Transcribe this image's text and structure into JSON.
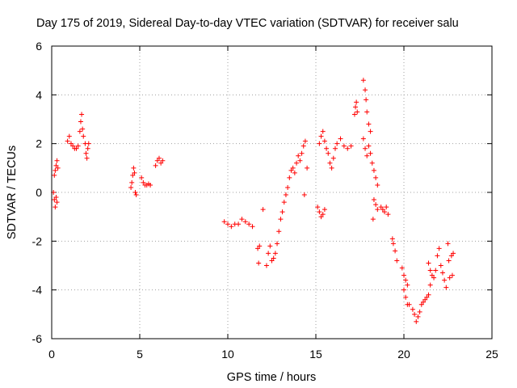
{
  "chart_data": {
    "type": "scatter",
    "title": "Day 175 of 2019, Sidereal Day-to-day VTEC variation (SDTVAR) for receiver salu",
    "xlabel": "GPS time / hours",
    "ylabel": "SDTVAR / TECUs",
    "xlim": [
      0,
      25
    ],
    "ylim": [
      -6,
      6
    ],
    "xticks": [
      0,
      5,
      10,
      15,
      20,
      25
    ],
    "yticks": [
      -6,
      -4,
      -2,
      0,
      2,
      4,
      6
    ],
    "xtick_labels": [
      "0",
      "5",
      "10",
      "15",
      "20",
      "25"
    ],
    "ytick_labels": [
      "-6",
      "-4",
      "-2",
      "0",
      "2",
      "4",
      "6"
    ],
    "grid": true,
    "marker": "+",
    "color": "#ff0000",
    "series": [
      {
        "name": "SDTVAR",
        "points": [
          [
            0.1,
            0.0
          ],
          [
            0.15,
            -0.3
          ],
          [
            0.2,
            -0.6
          ],
          [
            0.25,
            -0.2
          ],
          [
            0.3,
            -0.4
          ],
          [
            0.15,
            0.7
          ],
          [
            0.2,
            0.9
          ],
          [
            0.25,
            1.1
          ],
          [
            0.3,
            1.3
          ],
          [
            0.35,
            1.0
          ],
          [
            0.9,
            2.1
          ],
          [
            1.0,
            2.3
          ],
          [
            1.1,
            2.0
          ],
          [
            1.2,
            1.9
          ],
          [
            1.3,
            1.8
          ],
          [
            1.4,
            1.8
          ],
          [
            1.5,
            1.9
          ],
          [
            1.6,
            2.5
          ],
          [
            1.65,
            2.9
          ],
          [
            1.7,
            3.2
          ],
          [
            1.75,
            2.6
          ],
          [
            1.8,
            2.3
          ],
          [
            1.9,
            2.0
          ],
          [
            1.95,
            1.6
          ],
          [
            2.0,
            1.4
          ],
          [
            2.05,
            1.8
          ],
          [
            2.1,
            2.0
          ],
          [
            4.5,
            0.2
          ],
          [
            4.55,
            0.4
          ],
          [
            4.6,
            0.7
          ],
          [
            4.65,
            1.0
          ],
          [
            4.7,
            0.8
          ],
          [
            4.75,
            0.0
          ],
          [
            4.8,
            -0.1
          ],
          [
            5.1,
            0.6
          ],
          [
            5.2,
            0.4
          ],
          [
            5.3,
            0.3
          ],
          [
            5.4,
            0.3
          ],
          [
            5.5,
            0.35
          ],
          [
            5.6,
            0.3
          ],
          [
            5.9,
            1.1
          ],
          [
            6.0,
            1.3
          ],
          [
            6.1,
            1.4
          ],
          [
            6.2,
            1.2
          ],
          [
            6.3,
            1.3
          ],
          [
            9.8,
            -1.2
          ],
          [
            10.0,
            -1.3
          ],
          [
            10.2,
            -1.4
          ],
          [
            10.4,
            -1.3
          ],
          [
            10.6,
            -1.3
          ],
          [
            10.8,
            -1.1
          ],
          [
            11.0,
            -1.2
          ],
          [
            11.2,
            -1.3
          ],
          [
            11.4,
            -1.4
          ],
          [
            11.7,
            -2.3
          ],
          [
            11.8,
            -2.2
          ],
          [
            11.75,
            -2.9
          ],
          [
            12.0,
            -0.7
          ],
          [
            12.2,
            -3.0
          ],
          [
            12.3,
            -2.5
          ],
          [
            12.4,
            -2.2
          ],
          [
            12.5,
            -2.8
          ],
          [
            12.6,
            -2.7
          ],
          [
            12.7,
            -2.5
          ],
          [
            12.8,
            -2.1
          ],
          [
            12.9,
            -1.6
          ],
          [
            13.0,
            -1.1
          ],
          [
            13.1,
            -0.8
          ],
          [
            13.2,
            -0.4
          ],
          [
            13.3,
            -0.1
          ],
          [
            13.4,
            0.2
          ],
          [
            13.5,
            0.6
          ],
          [
            13.6,
            0.9
          ],
          [
            13.7,
            1.0
          ],
          [
            13.8,
            0.8
          ],
          [
            13.9,
            1.2
          ],
          [
            14.0,
            1.5
          ],
          [
            14.1,
            1.3
          ],
          [
            14.2,
            1.6
          ],
          [
            14.3,
            1.9
          ],
          [
            14.4,
            2.1
          ],
          [
            14.5,
            1.0
          ],
          [
            14.35,
            -0.1
          ],
          [
            15.1,
            -0.6
          ],
          [
            15.2,
            -0.8
          ],
          [
            15.3,
            -1.0
          ],
          [
            15.4,
            -0.9
          ],
          [
            15.5,
            -0.7
          ],
          [
            15.2,
            2.0
          ],
          [
            15.3,
            2.3
          ],
          [
            15.4,
            2.5
          ],
          [
            15.5,
            2.1
          ],
          [
            15.6,
            1.8
          ],
          [
            15.7,
            1.6
          ],
          [
            15.8,
            1.2
          ],
          [
            15.9,
            1.0
          ],
          [
            16.0,
            1.4
          ],
          [
            16.1,
            1.8
          ],
          [
            16.2,
            2.0
          ],
          [
            16.4,
            2.2
          ],
          [
            16.6,
            1.9
          ],
          [
            16.8,
            1.8
          ],
          [
            17.0,
            1.9
          ],
          [
            17.2,
            3.2
          ],
          [
            17.25,
            3.5
          ],
          [
            17.3,
            3.7
          ],
          [
            17.35,
            3.3
          ],
          [
            17.7,
            4.6
          ],
          [
            17.8,
            4.2
          ],
          [
            17.85,
            3.8
          ],
          [
            17.9,
            3.3
          ],
          [
            18.0,
            2.8
          ],
          [
            18.1,
            2.5
          ],
          [
            17.7,
            2.2
          ],
          [
            17.8,
            1.8
          ],
          [
            17.9,
            1.5
          ],
          [
            18.0,
            1.9
          ],
          [
            18.1,
            1.6
          ],
          [
            18.2,
            1.2
          ],
          [
            18.3,
            0.9
          ],
          [
            18.4,
            0.6
          ],
          [
            18.5,
            0.3
          ],
          [
            18.3,
            -0.3
          ],
          [
            18.4,
            -0.5
          ],
          [
            18.5,
            -0.7
          ],
          [
            18.25,
            -1.1
          ],
          [
            18.7,
            -0.6
          ],
          [
            18.8,
            -0.7
          ],
          [
            18.9,
            -0.8
          ],
          [
            19.0,
            -0.6
          ],
          [
            19.1,
            -0.9
          ],
          [
            19.35,
            -1.9
          ],
          [
            19.4,
            -2.1
          ],
          [
            19.5,
            -2.4
          ],
          [
            19.6,
            -2.8
          ],
          [
            19.9,
            -3.1
          ],
          [
            20.0,
            -3.4
          ],
          [
            20.1,
            -3.6
          ],
          [
            20.2,
            -3.8
          ],
          [
            20.0,
            -4.0
          ],
          [
            20.1,
            -4.3
          ],
          [
            20.2,
            -4.6
          ],
          [
            20.3,
            -4.6
          ],
          [
            20.5,
            -4.8
          ],
          [
            20.6,
            -5.0
          ],
          [
            20.7,
            -5.3
          ],
          [
            20.8,
            -5.1
          ],
          [
            20.9,
            -4.9
          ],
          [
            21.0,
            -4.6
          ],
          [
            21.1,
            -4.5
          ],
          [
            21.2,
            -4.4
          ],
          [
            21.3,
            -4.3
          ],
          [
            21.4,
            -4.2
          ],
          [
            21.5,
            -3.8
          ],
          [
            21.4,
            -2.9
          ],
          [
            21.5,
            -3.2
          ],
          [
            21.6,
            -3.4
          ],
          [
            21.7,
            -3.5
          ],
          [
            21.8,
            -3.2
          ],
          [
            21.9,
            -2.6
          ],
          [
            22.0,
            -2.3
          ],
          [
            22.1,
            -3.0
          ],
          [
            22.2,
            -3.3
          ],
          [
            22.3,
            -3.6
          ],
          [
            22.4,
            -3.9
          ],
          [
            22.5,
            -2.1
          ],
          [
            22.55,
            -2.8
          ],
          [
            22.6,
            -3.5
          ],
          [
            22.7,
            -2.6
          ],
          [
            22.8,
            -2.5
          ],
          [
            22.75,
            -3.4
          ]
        ]
      }
    ]
  }
}
